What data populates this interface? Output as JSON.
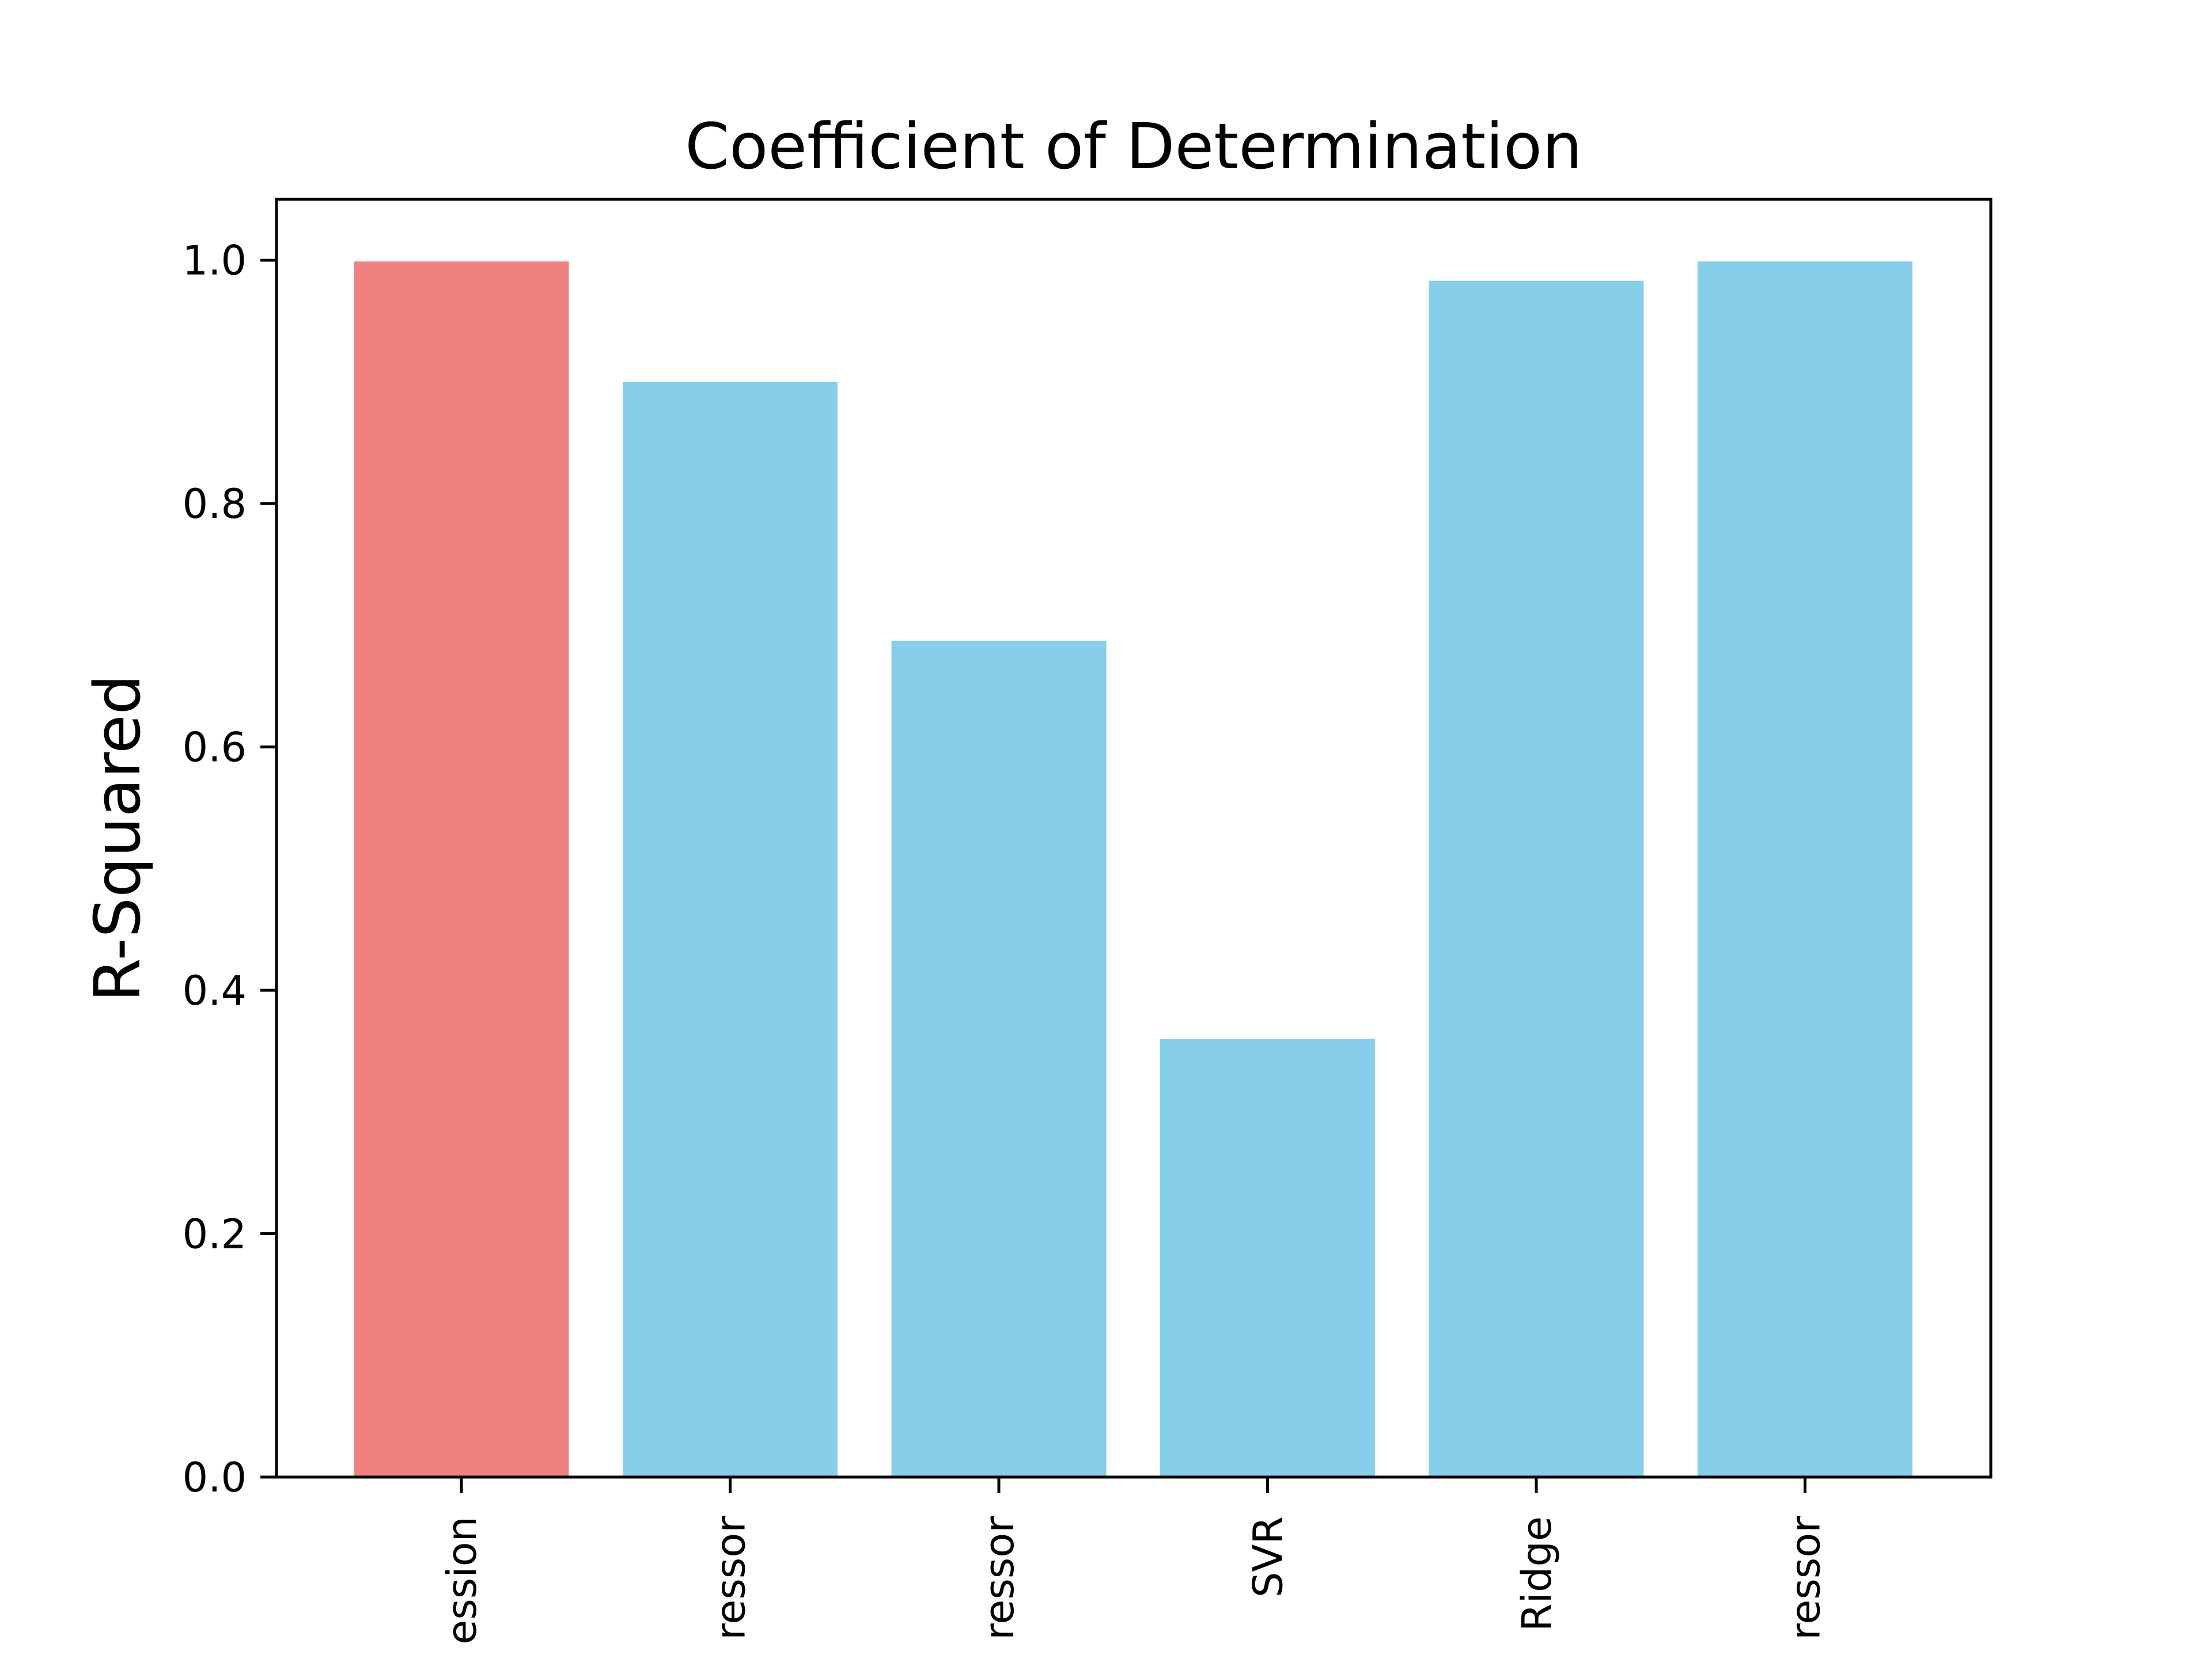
{
  "chart_data": {
    "type": "bar",
    "title": "Coefficient of Determination",
    "xlabel": "",
    "ylabel": "R-Squared",
    "categories": [
      "ession",
      "ressor",
      "ressor",
      "SVR",
      "Ridge",
      "ressor"
    ],
    "values": [
      0.999,
      0.9,
      0.687,
      0.36,
      0.983,
      0.999
    ],
    "bar_colors": [
      "#f08080",
      "#87ceeb",
      "#87ceeb",
      "#87ceeb",
      "#87ceeb",
      "#87ceeb"
    ],
    "ylim": [
      0,
      1.05
    ],
    "yticks": [
      0.0,
      0.2,
      0.4,
      0.6,
      0.8,
      1.0
    ],
    "ytick_labels": [
      "0.0",
      "0.2",
      "0.4",
      "0.6",
      "0.8",
      "1.0"
    ],
    "grid": false,
    "legend": "none"
  }
}
